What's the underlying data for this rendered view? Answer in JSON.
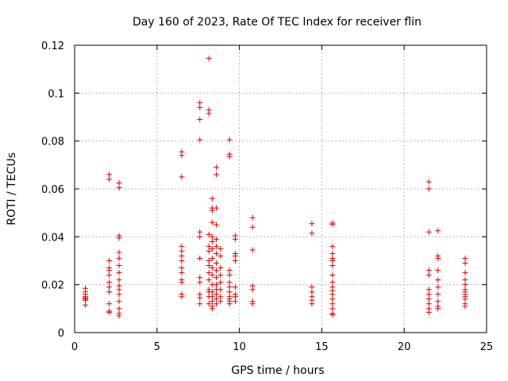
{
  "chart_data": {
    "type": "scatter",
    "title": "Day 160 of 2023, Rate Of TEC Index for receiver flin",
    "xlabel": "GPS time / hours",
    "ylabel": "ROTI / TECUs",
    "xlim": [
      0,
      25
    ],
    "ylim": [
      0,
      0.12
    ],
    "xticks": [
      "0",
      "5",
      "10",
      "15",
      "20",
      "25"
    ],
    "yticks": [
      "0",
      "0.02",
      "0.04",
      "0.06",
      "0.08",
      "0.1",
      "0.12"
    ],
    "grid": true,
    "marker": "plus",
    "color": "#dd0000",
    "points": [
      [
        0.65,
        0.0185
      ],
      [
        0.65,
        0.017
      ],
      [
        0.65,
        0.016
      ],
      [
        0.65,
        0.015
      ],
      [
        0.65,
        0.0145
      ],
      [
        0.65,
        0.014
      ],
      [
        0.65,
        0.0135
      ],
      [
        0.65,
        0.0115
      ],
      [
        2.1,
        0.066
      ],
      [
        2.1,
        0.064
      ],
      [
        2.1,
        0.03
      ],
      [
        2.1,
        0.027
      ],
      [
        2.1,
        0.026
      ],
      [
        2.1,
        0.024
      ],
      [
        2.1,
        0.021
      ],
      [
        2.1,
        0.019
      ],
      [
        2.1,
        0.017
      ],
      [
        2.1,
        0.012
      ],
      [
        2.1,
        0.009
      ],
      [
        2.1,
        0.0085
      ],
      [
        2.7,
        0.0625
      ],
      [
        2.7,
        0.0605
      ],
      [
        2.7,
        0.0405
      ],
      [
        2.7,
        0.0395
      ],
      [
        2.7,
        0.0335
      ],
      [
        2.7,
        0.031
      ],
      [
        2.7,
        0.028
      ],
      [
        2.7,
        0.025
      ],
      [
        2.7,
        0.022
      ],
      [
        2.7,
        0.0195
      ],
      [
        2.7,
        0.018
      ],
      [
        2.7,
        0.016
      ],
      [
        2.7,
        0.013
      ],
      [
        2.7,
        0.01
      ],
      [
        2.7,
        0.008
      ],
      [
        2.7,
        0.007
      ],
      [
        6.5,
        0.0755
      ],
      [
        6.5,
        0.074
      ],
      [
        6.5,
        0.065
      ],
      [
        6.5,
        0.036
      ],
      [
        6.5,
        0.034
      ],
      [
        6.5,
        0.032
      ],
      [
        6.5,
        0.03
      ],
      [
        6.5,
        0.027
      ],
      [
        6.5,
        0.025
      ],
      [
        6.5,
        0.022
      ],
      [
        6.5,
        0.021
      ],
      [
        6.5,
        0.016
      ],
      [
        6.5,
        0.015
      ],
      [
        7.6,
        0.096
      ],
      [
        7.6,
        0.094
      ],
      [
        7.6,
        0.089
      ],
      [
        7.6,
        0.0805
      ],
      [
        7.6,
        0.042
      ],
      [
        7.6,
        0.04
      ],
      [
        7.6,
        0.031
      ],
      [
        7.6,
        0.023
      ],
      [
        7.6,
        0.021
      ],
      [
        7.6,
        0.016
      ],
      [
        7.6,
        0.0145
      ],
      [
        7.6,
        0.012
      ],
      [
        8.15,
        0.1145
      ],
      [
        8.15,
        0.093
      ],
      [
        8.15,
        0.0915
      ],
      [
        8.15,
        0.041
      ],
      [
        8.15,
        0.036
      ],
      [
        8.15,
        0.034
      ],
      [
        8.15,
        0.03
      ],
      [
        8.15,
        0.028
      ],
      [
        8.15,
        0.025
      ],
      [
        8.15,
        0.022
      ],
      [
        8.15,
        0.018
      ],
      [
        8.15,
        0.017
      ],
      [
        8.15,
        0.015
      ],
      [
        8.15,
        0.012
      ],
      [
        8.35,
        0.056
      ],
      [
        8.35,
        0.052
      ],
      [
        8.35,
        0.051
      ],
      [
        8.35,
        0.046
      ],
      [
        8.35,
        0.04
      ],
      [
        8.35,
        0.038
      ],
      [
        8.35,
        0.035
      ],
      [
        8.35,
        0.031
      ],
      [
        8.35,
        0.027
      ],
      [
        8.35,
        0.024
      ],
      [
        8.35,
        0.02
      ],
      [
        8.35,
        0.017
      ],
      [
        8.35,
        0.015
      ],
      [
        8.35,
        0.013
      ],
      [
        8.35,
        0.011
      ],
      [
        8.35,
        0.01
      ],
      [
        8.6,
        0.069
      ],
      [
        8.6,
        0.066
      ],
      [
        8.6,
        0.052
      ],
      [
        8.6,
        0.045
      ],
      [
        8.6,
        0.039
      ],
      [
        8.6,
        0.036
      ],
      [
        8.6,
        0.033
      ],
      [
        8.6,
        0.029
      ],
      [
        8.6,
        0.026
      ],
      [
        8.6,
        0.023
      ],
      [
        8.6,
        0.02
      ],
      [
        8.6,
        0.018
      ],
      [
        8.6,
        0.016
      ],
      [
        8.6,
        0.014
      ],
      [
        8.6,
        0.012
      ],
      [
        8.85,
        0.035
      ],
      [
        8.85,
        0.032
      ],
      [
        8.85,
        0.027
      ],
      [
        8.85,
        0.024
      ],
      [
        8.85,
        0.021
      ],
      [
        8.85,
        0.018
      ],
      [
        8.85,
        0.015
      ],
      [
        8.85,
        0.013
      ],
      [
        9.4,
        0.0805
      ],
      [
        9.4,
        0.0745
      ],
      [
        9.4,
        0.0735
      ],
      [
        9.4,
        0.026
      ],
      [
        9.4,
        0.024
      ],
      [
        9.4,
        0.021
      ],
      [
        9.4,
        0.019
      ],
      [
        9.4,
        0.017
      ],
      [
        9.4,
        0.015
      ],
      [
        9.4,
        0.014
      ],
      [
        9.4,
        0.013
      ],
      [
        9.4,
        0.012
      ],
      [
        9.75,
        0.0405
      ],
      [
        9.75,
        0.039
      ],
      [
        9.75,
        0.033
      ],
      [
        9.75,
        0.032
      ],
      [
        9.75,
        0.03
      ],
      [
        9.75,
        0.019
      ],
      [
        9.75,
        0.016
      ],
      [
        9.75,
        0.015
      ],
      [
        9.75,
        0.013
      ],
      [
        10.8,
        0.048
      ],
      [
        10.8,
        0.044
      ],
      [
        10.8,
        0.0345
      ],
      [
        10.8,
        0.0195
      ],
      [
        10.8,
        0.018
      ],
      [
        10.8,
        0.013
      ],
      [
        10.8,
        0.012
      ],
      [
        14.4,
        0.0455
      ],
      [
        14.4,
        0.0415
      ],
      [
        14.4,
        0.019
      ],
      [
        14.4,
        0.017
      ],
      [
        14.4,
        0.015
      ],
      [
        14.4,
        0.0135
      ],
      [
        14.4,
        0.012
      ],
      [
        15.65,
        0.0458
      ],
      [
        15.65,
        0.0452
      ],
      [
        15.65,
        0.036
      ],
      [
        15.65,
        0.033
      ],
      [
        15.65,
        0.031
      ],
      [
        15.65,
        0.03
      ],
      [
        15.65,
        0.028
      ],
      [
        15.65,
        0.024
      ],
      [
        15.65,
        0.021
      ],
      [
        15.65,
        0.019
      ],
      [
        15.65,
        0.0175
      ],
      [
        15.65,
        0.016
      ],
      [
        15.65,
        0.014
      ],
      [
        15.65,
        0.012
      ],
      [
        15.65,
        0.01
      ],
      [
        15.65,
        0.008
      ],
      [
        15.65,
        0.0075
      ],
      [
        21.5,
        0.063
      ],
      [
        21.5,
        0.06
      ],
      [
        21.5,
        0.042
      ],
      [
        21.5,
        0.026
      ],
      [
        21.5,
        0.024
      ],
      [
        21.5,
        0.018
      ],
      [
        21.5,
        0.016
      ],
      [
        21.5,
        0.014
      ],
      [
        21.5,
        0.012
      ],
      [
        21.5,
        0.01
      ],
      [
        21.5,
        0.0085
      ],
      [
        22.05,
        0.0425
      ],
      [
        22.05,
        0.032
      ],
      [
        22.05,
        0.031
      ],
      [
        22.05,
        0.026
      ],
      [
        22.05,
        0.022
      ],
      [
        22.05,
        0.019
      ],
      [
        22.05,
        0.016
      ],
      [
        22.05,
        0.013
      ],
      [
        22.05,
        0.011
      ],
      [
        22.05,
        0.01
      ],
      [
        23.7,
        0.031
      ],
      [
        23.7,
        0.029
      ],
      [
        23.7,
        0.025
      ],
      [
        23.7,
        0.022
      ],
      [
        23.7,
        0.02
      ],
      [
        23.7,
        0.018
      ],
      [
        23.7,
        0.017
      ],
      [
        23.7,
        0.016
      ],
      [
        23.7,
        0.015
      ],
      [
        23.7,
        0.014
      ],
      [
        23.7,
        0.012
      ],
      [
        23.7,
        0.011
      ]
    ]
  }
}
